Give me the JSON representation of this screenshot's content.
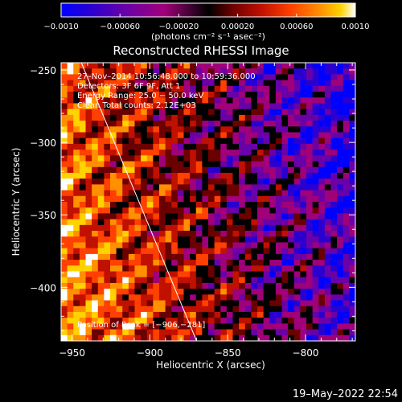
{
  "chart_data": {
    "type": "heatmap",
    "title": "Reconstructed RHESSI Image",
    "xlabel": "Heliocentric X (arcsec)",
    "ylabel": "Heliocentric Y (arcsec)",
    "xlim": [
      -957,
      -768
    ],
    "ylim": [
      -437,
      -245
    ],
    "x_ticks": [
      -950,
      -900,
      -850,
      -800
    ],
    "y_ticks": [
      -400,
      -350,
      -300,
      -250
    ],
    "x_tick_labels": [
      "−950",
      "−900",
      "−850",
      "−800"
    ],
    "y_tick_labels": [
      "−400",
      "−350",
      "−300",
      "−250"
    ],
    "colorbar": {
      "range": [
        -0.001,
        0.001
      ],
      "ticks": [
        -0.001,
        -0.0006,
        -0.0002,
        0.0002,
        0.0006,
        0.001
      ],
      "tick_labels": [
        "−0.0010",
        "−0.00060",
        "−0.00020",
        "0.00020",
        "0.00060",
        "0.0010"
      ],
      "unit_label": "(photons cm⁻² s⁻¹ asec⁻²)",
      "colors": [
        "#0000ff",
        "#2a00d0",
        "#6a00a8",
        "#a0007a",
        "#000000",
        "#6a0000",
        "#c01000",
        "#ff4000",
        "#ff9000",
        "#ffd200",
        "#ffffff"
      ]
    },
    "annotations": [
      "27–Nov–2014 10:56:48.000 to 10:59:36.000",
      "Detectors: 3F 6F 9F, Att 1",
      "Energy Range: 25.0 − 50.0 keV",
      "Clean    Total counts: 2.12E+03"
    ],
    "peak_label": "Position of Peak = [−906,−281]",
    "limb_line": {
      "from": [
        -944,
        -245
      ],
      "to": [
        -870,
        -437
      ]
    }
  },
  "footer": {
    "timestamp": "19–May–2022 22:54"
  }
}
